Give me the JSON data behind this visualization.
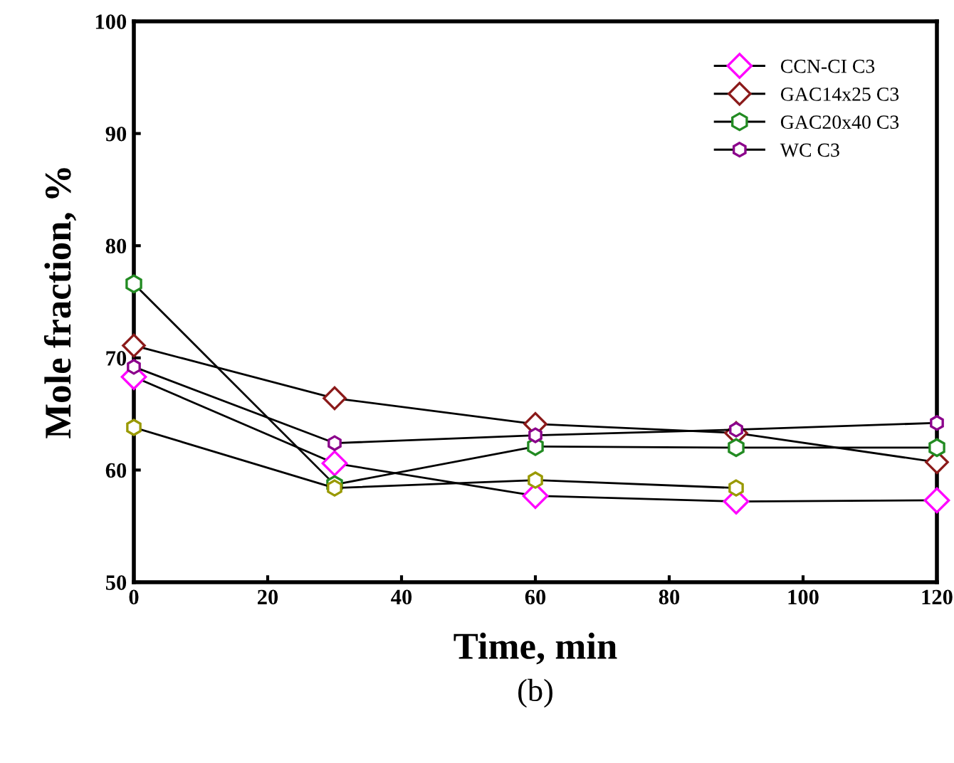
{
  "chart_data": {
    "type": "line",
    "xlabel": "Time, min",
    "ylabel": "Mole fraction, %",
    "annotations": [
      "(b)"
    ],
    "x": [
      0,
      30,
      60,
      90,
      120
    ],
    "xlim": [
      0,
      120
    ],
    "xticks": [
      0,
      20,
      40,
      60,
      80,
      100,
      120
    ],
    "ylim": [
      50,
      100
    ],
    "yticks": [
      50,
      60,
      70,
      80,
      90,
      100
    ],
    "grid": false,
    "legend": "top right",
    "series": [
      {
        "name": "CCN-CI C3",
        "color": "#ff00ff",
        "marker": "diamond",
        "values": [
          68.3,
          60.6,
          57.7,
          57.2,
          57.3
        ]
      },
      {
        "name": "GAC14x25 C3",
        "color": "#8b1a1a",
        "marker": "diamond",
        "values": [
          71.1,
          66.4,
          64.1,
          63.3,
          60.7
        ]
      },
      {
        "name": "GAC20x40 C3",
        "color": "#228b22",
        "marker": "circle",
        "values": [
          76.6,
          58.7,
          62.1,
          62.0,
          62.0
        ]
      },
      {
        "color": "#999900",
        "marker": "circle",
        "values": [
          63.8,
          58.4,
          59.1,
          58.4,
          null
        ]
      },
      {
        "name": "WC C3",
        "color": "#8b008b",
        "marker": "circle",
        "values": [
          69.2,
          62.4,
          63.1,
          63.6,
          64.2
        ]
      }
    ]
  }
}
